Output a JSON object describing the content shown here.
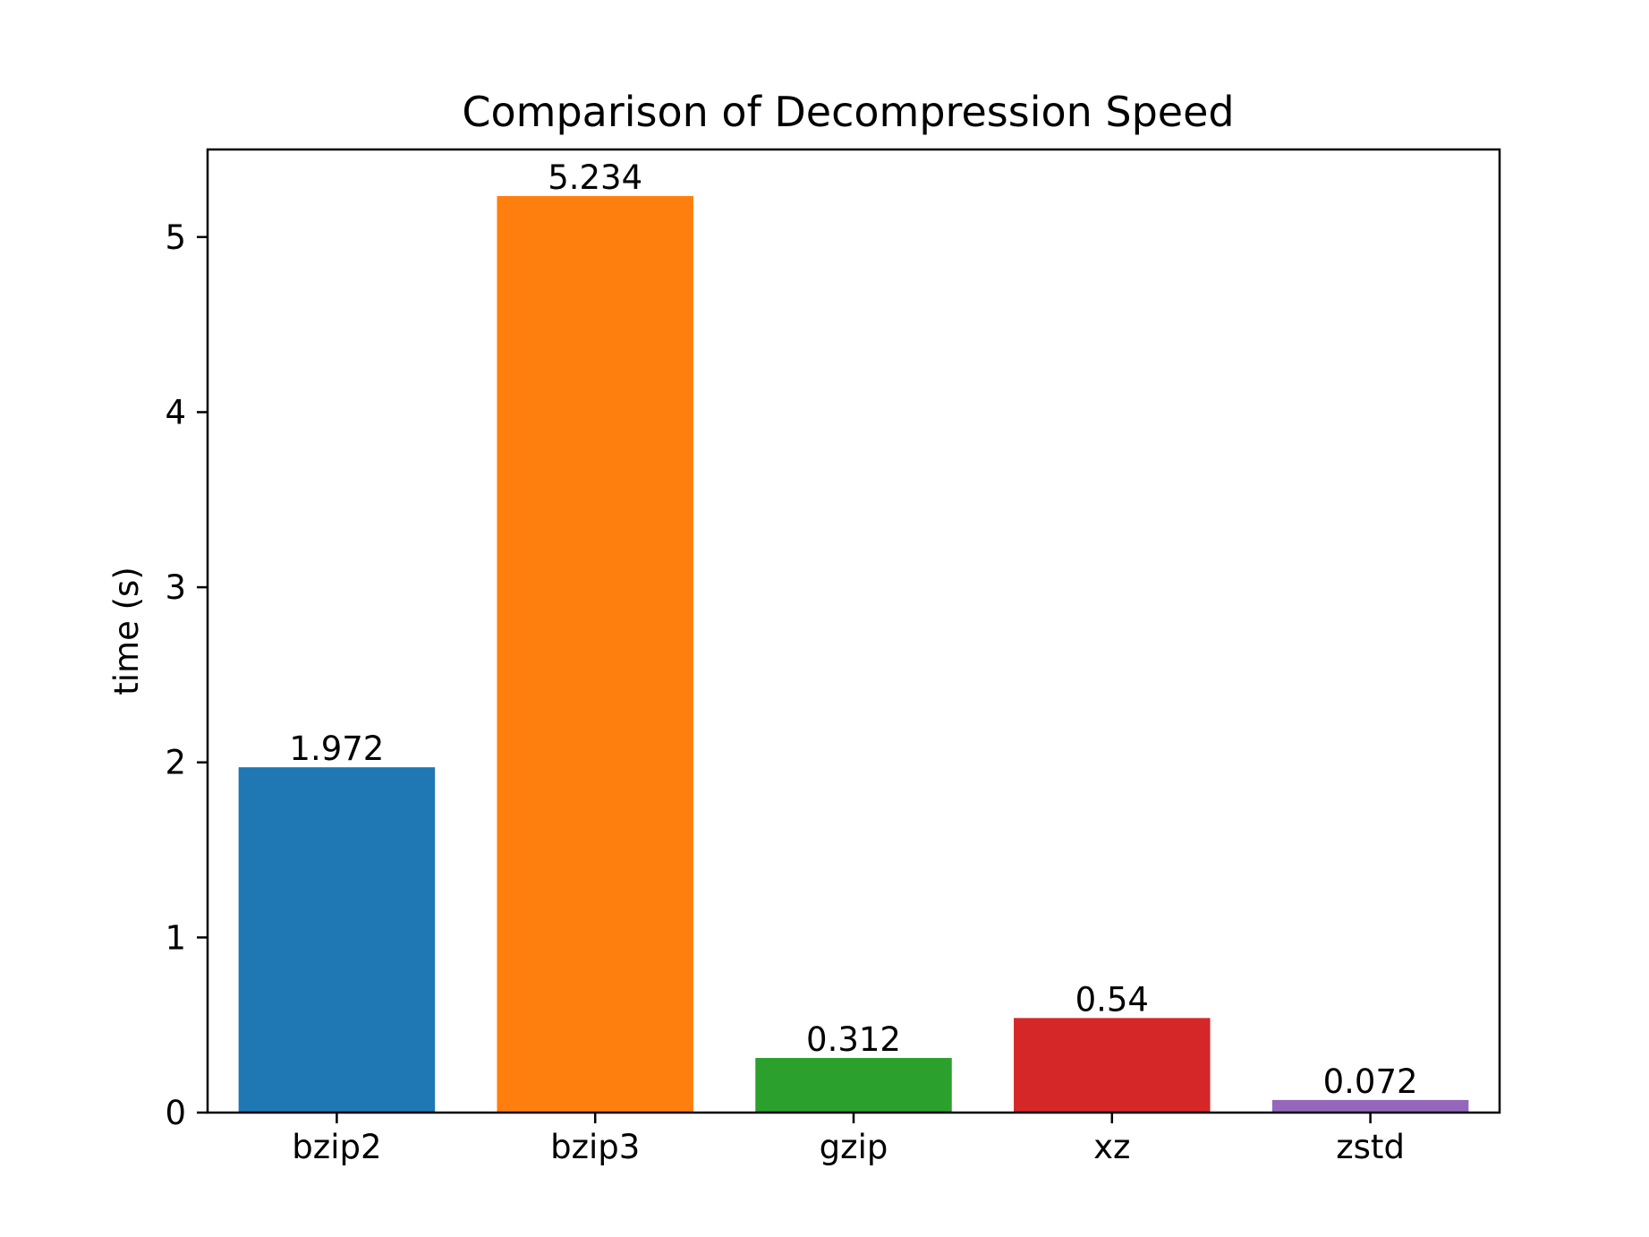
{
  "chart_data": {
    "type": "bar",
    "title": "Comparison of Decompression Speed",
    "xlabel": "",
    "ylabel": "time (s)",
    "categories": [
      "bzip2",
      "bzip3",
      "gzip",
      "xz",
      "zstd"
    ],
    "values": [
      1.972,
      5.234,
      0.312,
      0.54,
      0.072
    ],
    "value_labels": [
      "1.972",
      "5.234",
      "0.312",
      "0.54",
      "0.072"
    ],
    "colors": [
      "#1f77b4",
      "#ff7f0e",
      "#2ca02c",
      "#d62728",
      "#9467bd"
    ],
    "ylim": [
      0,
      5.5
    ],
    "yticks": [
      0,
      1,
      2,
      3,
      4,
      5
    ],
    "ytick_labels": [
      "0",
      "1",
      "2",
      "3",
      "4",
      "5"
    ],
    "grid": false,
    "legend": "none"
  }
}
